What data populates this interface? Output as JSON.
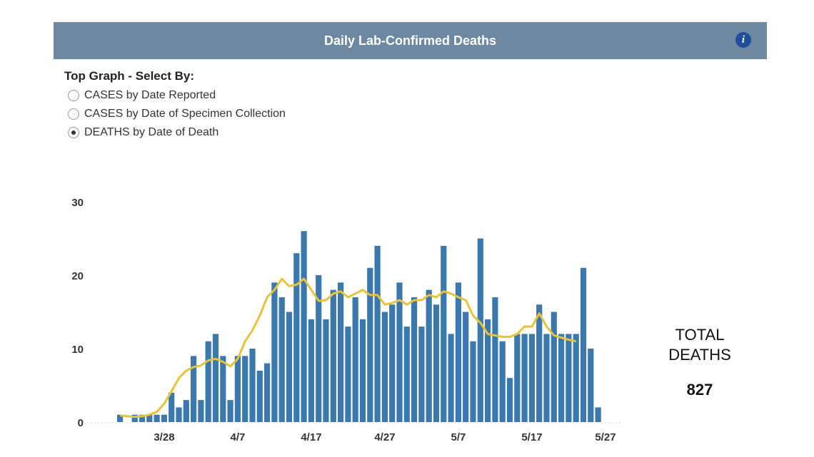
{
  "header": {
    "title": "Daily Lab-Confirmed Deaths",
    "info_icon": "info-icon",
    "info_glyph": "i"
  },
  "controls": {
    "title": "Top Graph - Select By:",
    "options": [
      {
        "label": "CASES by Date Reported",
        "selected": false
      },
      {
        "label": "CASES by Date of Specimen Collection",
        "selected": false
      },
      {
        "label": "DEATHS by Date of Death",
        "selected": true
      }
    ]
  },
  "totals": {
    "label_line1": "TOTAL",
    "label_line2": "DEATHS",
    "value": "827"
  },
  "colors": {
    "header": "#6e88a2",
    "bar": "#3a78ad",
    "line": "#e8c33a",
    "info": "#1f4f9a"
  },
  "chart_data": {
    "type": "bar",
    "title": "",
    "xlabel": "",
    "ylabel": "",
    "ylim": [
      0,
      30
    ],
    "y_ticks": [
      0,
      10,
      20,
      30
    ],
    "x_tick_labels": [
      "3/28",
      "4/7",
      "4/17",
      "4/27",
      "5/7",
      "5/17",
      "5/27"
    ],
    "x_tick_indices": [
      6,
      16,
      26,
      36,
      46,
      56,
      66
    ],
    "series": [
      {
        "kind": "bar",
        "values": [
          1,
          0,
          1,
          1,
          1,
          1,
          1,
          4,
          2,
          3,
          9,
          3,
          11,
          12,
          9,
          3,
          9,
          9,
          10,
          7,
          8,
          19,
          17,
          15,
          23,
          26,
          14,
          20,
          14,
          18,
          19,
          13,
          17,
          14,
          21,
          24,
          15,
          16,
          19,
          13,
          17,
          13,
          18,
          16,
          24,
          12,
          19,
          15,
          11,
          25,
          14,
          17,
          11,
          6,
          12,
          12,
          12,
          16,
          12,
          15,
          12,
          12,
          12,
          21,
          10,
          2
        ]
      },
      {
        "kind": "line",
        "values": [
          0.9,
          0.8,
          0.7,
          0.8,
          1.0,
          1.4,
          2.5,
          4.2,
          6.0,
          7.0,
          7.5,
          7.7,
          8.4,
          8.6,
          8.2,
          7.6,
          8.6,
          11.0,
          12.5,
          14.5,
          17.0,
          18.0,
          19.5,
          18.5,
          18.7,
          19.5,
          18.0,
          16.5,
          16.6,
          17.5,
          17.8,
          17.0,
          17.5,
          18.0,
          17.3,
          17.3,
          16.0,
          16.2,
          16.6,
          16.0,
          16.6,
          16.6,
          17.3,
          17.0,
          17.8,
          17.5,
          17.0,
          16.6,
          14.5,
          13.5,
          12.0,
          11.8,
          11.6,
          11.6,
          12.0,
          13.0,
          13.0,
          14.8,
          13.0,
          11.8,
          11.5,
          11.2,
          11.0
        ]
      }
    ]
  }
}
